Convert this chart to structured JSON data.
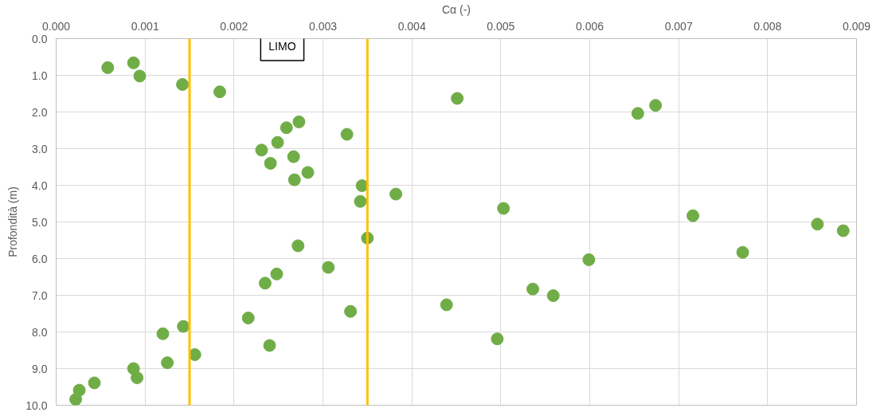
{
  "chart_data": {
    "type": "scatter",
    "xlabel": "Cα (-)",
    "ylabel": "Profondità (m)",
    "annotations": [
      "LIMO"
    ],
    "x": [
      0.00058,
      0.00087,
      0.00094,
      0.00142,
      0.00184,
      0.00451,
      0.00654,
      0.00674,
      0.00273,
      0.00259,
      0.00327,
      0.00249,
      0.00231,
      0.00267,
      0.00241,
      0.00283,
      0.00268,
      0.00344,
      0.00342,
      0.00382,
      0.00503,
      0.00716,
      0.00856,
      0.00885,
      0.0035,
      0.00272,
      0.00772,
      0.00599,
      0.00306,
      0.00248,
      0.00235,
      0.00536,
      0.00559,
      0.00439,
      0.00331,
      0.00216,
      0.00143,
      0.0012,
      0.0024,
      0.00496,
      0.00156,
      0.00125,
      0.00087,
      0.00091,
      0.00043,
      0.00026,
      0.00022
    ],
    "series": [
      {
        "color": "#70ad47",
        "values": [
          0.79,
          0.66,
          1.02,
          1.25,
          1.45,
          1.63,
          2.04,
          1.82,
          2.27,
          2.43,
          2.61,
          2.83,
          3.04,
          3.22,
          3.4,
          3.65,
          3.85,
          4.01,
          4.44,
          4.24,
          4.63,
          4.83,
          5.06,
          5.24,
          5.44,
          5.65,
          5.83,
          6.03,
          6.24,
          6.42,
          6.67,
          6.83,
          7.01,
          7.26,
          7.44,
          7.62,
          7.85,
          8.05,
          8.37,
          8.19,
          8.62,
          8.84,
          9.0,
          9.25,
          9.39,
          9.59,
          9.84
        ]
      }
    ],
    "xlim": [
      0,
      0.009
    ],
    "xticks": [
      {
        "value": 0,
        "label": "0.000"
      },
      {
        "value": 0.001,
        "label": "0.001"
      },
      {
        "value": 0.002,
        "label": "0.002"
      },
      {
        "value": 0.003,
        "label": "0.003"
      },
      {
        "value": 0.004,
        "label": "0.004"
      },
      {
        "value": 0.005,
        "label": "0.005"
      },
      {
        "value": 0.006,
        "label": "0.006"
      },
      {
        "value": 0.007,
        "label": "0.007"
      },
      {
        "value": 0.008,
        "label": "0.008"
      },
      {
        "value": 0.009,
        "label": "0.009"
      }
    ],
    "ylim": [
      10,
      0
    ],
    "yticks": [
      {
        "value": 0,
        "label": "0.0"
      },
      {
        "value": 1,
        "label": "1.0"
      },
      {
        "value": 2,
        "label": "2.0"
      },
      {
        "value": 3,
        "label": "3.0"
      },
      {
        "value": 4,
        "label": "4.0"
      },
      {
        "value": 5,
        "label": "5.0"
      },
      {
        "value": 6,
        "label": "6.0"
      },
      {
        "value": 7,
        "label": "7.0"
      },
      {
        "value": 8,
        "label": "8.0"
      },
      {
        "value": 9,
        "label": "9.0"
      },
      {
        "value": 10,
        "label": "10.0"
      }
    ],
    "ref_lines": [
      {
        "axis": "x",
        "value": 0.0015,
        "color": "#ffc000"
      },
      {
        "axis": "x",
        "value": 0.0035,
        "color": "#ffc000"
      }
    ],
    "grid": true,
    "marker": "circle"
  }
}
